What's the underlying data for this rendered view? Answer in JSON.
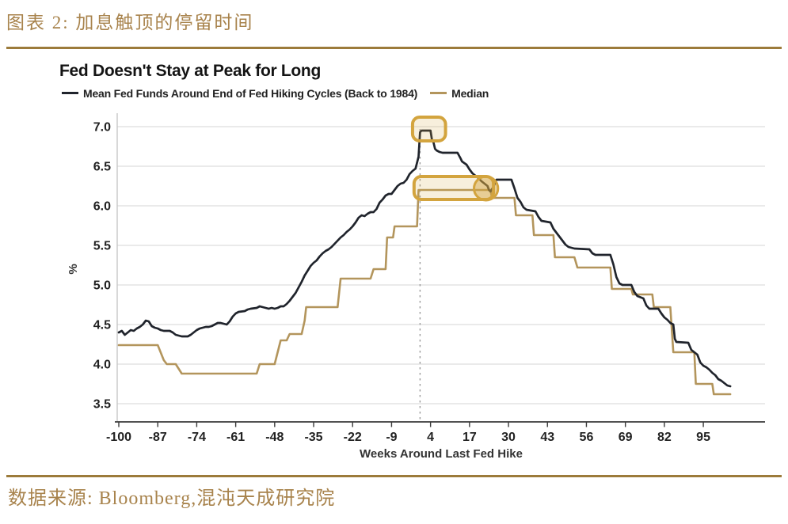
{
  "page": {
    "caption": "图表 2: 加息触顶的停留时间",
    "source": "数据来源: Bloomberg,混沌天成研究院"
  },
  "style": {
    "accent_rule": "#9c7b3b",
    "caption_color": "#a8834c",
    "title_color": "#141414",
    "legend_text_color": "#222222",
    "background": "#ffffff",
    "gridline_color": "#dedede",
    "axis_color": "#3a3a3a",
    "highlight_gold": "#d3a43e"
  },
  "chart_data": {
    "type": "line",
    "title": "Fed Doesn't Stay at Peak for Long",
    "xlabel": "Weeks Around Last Fed Hike",
    "ylabel": "%",
    "xlim": [
      -100,
      115
    ],
    "ylim": [
      3.3,
      7.15
    ],
    "x_ticks": [
      -100,
      -87,
      -74,
      -61,
      -48,
      -35,
      -22,
      -9,
      4,
      17,
      30,
      43,
      56,
      69,
      82,
      95
    ],
    "y_ticks": [
      3.5,
      4.0,
      4.5,
      5.0,
      5.5,
      6.0,
      6.5,
      7.0
    ],
    "grid": "horizontal",
    "legend_position": "top-left",
    "series": [
      {
        "name": "Mean Fed Funds Around End of Fed Hiking Cycles (Back to 1984)",
        "color": "#20242c",
        "values": [
          [
            -100,
            4.4
          ],
          [
            -99,
            4.42
          ],
          [
            -98,
            4.37
          ],
          [
            -97,
            4.4
          ],
          [
            -96,
            4.43
          ],
          [
            -95,
            4.42
          ],
          [
            -94,
            4.45
          ],
          [
            -93,
            4.47
          ],
          [
            -92,
            4.5
          ],
          [
            -91,
            4.55
          ],
          [
            -90,
            4.54
          ],
          [
            -89,
            4.48
          ],
          [
            -88,
            4.46
          ],
          [
            -87,
            4.45
          ],
          [
            -86,
            4.43
          ],
          [
            -85,
            4.42
          ],
          [
            -83,
            4.42
          ],
          [
            -82,
            4.4
          ],
          [
            -81,
            4.37
          ],
          [
            -79,
            4.35
          ],
          [
            -77,
            4.35
          ],
          [
            -76,
            4.37
          ],
          [
            -75,
            4.4
          ],
          [
            -74,
            4.43
          ],
          [
            -73,
            4.45
          ],
          [
            -72,
            4.46
          ],
          [
            -71,
            4.47
          ],
          [
            -70,
            4.47
          ],
          [
            -69,
            4.48
          ],
          [
            -68,
            4.5
          ],
          [
            -67,
            4.52
          ],
          [
            -66,
            4.52
          ],
          [
            -65,
            4.51
          ],
          [
            -64,
            4.5
          ],
          [
            -63,
            4.54
          ],
          [
            -62,
            4.6
          ],
          [
            -61,
            4.64
          ],
          [
            -60,
            4.66
          ],
          [
            -58,
            4.67
          ],
          [
            -57,
            4.69
          ],
          [
            -56,
            4.7
          ],
          [
            -54,
            4.71
          ],
          [
            -53,
            4.73
          ],
          [
            -52,
            4.72
          ],
          [
            -51,
            4.71
          ],
          [
            -50,
            4.7
          ],
          [
            -49,
            4.71
          ],
          [
            -48,
            4.7
          ],
          [
            -47,
            4.71
          ],
          [
            -46,
            4.73
          ],
          [
            -45,
            4.73
          ],
          [
            -44,
            4.76
          ],
          [
            -43,
            4.8
          ],
          [
            -42,
            4.85
          ],
          [
            -41,
            4.9
          ],
          [
            -40,
            4.97
          ],
          [
            -39,
            5.04
          ],
          [
            -38,
            5.12
          ],
          [
            -37,
            5.18
          ],
          [
            -36,
            5.24
          ],
          [
            -35,
            5.28
          ],
          [
            -34,
            5.31
          ],
          [
            -33,
            5.36
          ],
          [
            -32,
            5.4
          ],
          [
            -31,
            5.43
          ],
          [
            -30,
            5.45
          ],
          [
            -29,
            5.48
          ],
          [
            -28,
            5.52
          ],
          [
            -27,
            5.56
          ],
          [
            -26,
            5.6
          ],
          [
            -25,
            5.63
          ],
          [
            -24,
            5.67
          ],
          [
            -23,
            5.7
          ],
          [
            -22,
            5.74
          ],
          [
            -21,
            5.79
          ],
          [
            -20,
            5.85
          ],
          [
            -19,
            5.88
          ],
          [
            -18,
            5.87
          ],
          [
            -17,
            5.9
          ],
          [
            -16,
            5.92
          ],
          [
            -15,
            5.92
          ],
          [
            -14,
            5.96
          ],
          [
            -13,
            6.04
          ],
          [
            -12,
            6.08
          ],
          [
            -11,
            6.13
          ],
          [
            -10,
            6.15
          ],
          [
            -9,
            6.15
          ],
          [
            -8,
            6.2
          ],
          [
            -7,
            6.25
          ],
          [
            -6,
            6.28
          ],
          [
            -5,
            6.29
          ],
          [
            -4,
            6.33
          ],
          [
            -3,
            6.4
          ],
          [
            -2,
            6.44
          ],
          [
            -1,
            6.47
          ],
          [
            0,
            6.62
          ],
          [
            0.5,
            6.93
          ],
          [
            1,
            6.95
          ],
          [
            4,
            6.95
          ],
          [
            4.5,
            6.83
          ],
          [
            5,
            6.8
          ],
          [
            5.5,
            6.72
          ],
          [
            6,
            6.7
          ],
          [
            7,
            6.68
          ],
          [
            8,
            6.67
          ],
          [
            13,
            6.67
          ],
          [
            14,
            6.6
          ],
          [
            14.5,
            6.56
          ],
          [
            16,
            6.52
          ],
          [
            17,
            6.46
          ],
          [
            18,
            6.41
          ],
          [
            19,
            6.38
          ],
          [
            20,
            6.35
          ],
          [
            21,
            6.31
          ],
          [
            22,
            6.28
          ],
          [
            23,
            6.25
          ],
          [
            23.5,
            6.2
          ],
          [
            24,
            6.18
          ],
          [
            25,
            6.24
          ],
          [
            26,
            6.33
          ],
          [
            31,
            6.33
          ],
          [
            32,
            6.22
          ],
          [
            33,
            6.1
          ],
          [
            34,
            6.05
          ],
          [
            35,
            5.98
          ],
          [
            36,
            5.95
          ],
          [
            39,
            5.93
          ],
          [
            40,
            5.86
          ],
          [
            41,
            5.81
          ],
          [
            44,
            5.79
          ],
          [
            45,
            5.71
          ],
          [
            46,
            5.66
          ],
          [
            47,
            5.61
          ],
          [
            48,
            5.56
          ],
          [
            49,
            5.51
          ],
          [
            50,
            5.48
          ],
          [
            52,
            5.46
          ],
          [
            57,
            5.45
          ],
          [
            58,
            5.4
          ],
          [
            59,
            5.38
          ],
          [
            64,
            5.38
          ],
          [
            65,
            5.26
          ],
          [
            66,
            5.1
          ],
          [
            67,
            5.02
          ],
          [
            68,
            5.0
          ],
          [
            71,
            5.0
          ],
          [
            72,
            4.91
          ],
          [
            73,
            4.86
          ],
          [
            75,
            4.83
          ],
          [
            76,
            4.74
          ],
          [
            77,
            4.7
          ],
          [
            80,
            4.7
          ],
          [
            81,
            4.64
          ],
          [
            82,
            4.59
          ],
          [
            83,
            4.56
          ],
          [
            84,
            4.52
          ],
          [
            85,
            4.5
          ],
          [
            85.5,
            4.32
          ],
          [
            86,
            4.28
          ],
          [
            90,
            4.27
          ],
          [
            91,
            4.18
          ],
          [
            92,
            4.15
          ],
          [
            93,
            4.12
          ],
          [
            94,
            4.02
          ],
          [
            95,
            3.98
          ],
          [
            96,
            3.96
          ],
          [
            97,
            3.93
          ],
          [
            98,
            3.89
          ],
          [
            99,
            3.86
          ],
          [
            100,
            3.81
          ],
          [
            101,
            3.79
          ],
          [
            102,
            3.76
          ],
          [
            103,
            3.73
          ],
          [
            104,
            3.72
          ]
        ]
      },
      {
        "name": "Median",
        "color": "#b3955c",
        "values": [
          [
            -100,
            4.24
          ],
          [
            -87,
            4.24
          ],
          [
            -85,
            4.05
          ],
          [
            -84,
            4.0
          ],
          [
            -81,
            4.0
          ],
          [
            -79,
            3.88
          ],
          [
            -54,
            3.88
          ],
          [
            -53,
            4.0
          ],
          [
            -48,
            4.0
          ],
          [
            -47,
            4.15
          ],
          [
            -46,
            4.3
          ],
          [
            -44,
            4.3
          ],
          [
            -43,
            4.38
          ],
          [
            -39,
            4.38
          ],
          [
            -38,
            4.55
          ],
          [
            -37.5,
            4.72
          ],
          [
            -27,
            4.72
          ],
          [
            -26,
            5.08
          ],
          [
            -16,
            5.08
          ],
          [
            -15,
            5.2
          ],
          [
            -11,
            5.2
          ],
          [
            -10.5,
            5.6
          ],
          [
            -8.5,
            5.6
          ],
          [
            -8,
            5.74
          ],
          [
            -0.5,
            5.74
          ],
          [
            0,
            6.2
          ],
          [
            24,
            6.2
          ],
          [
            24.5,
            6.1
          ],
          [
            32,
            6.1
          ],
          [
            32.5,
            5.88
          ],
          [
            38,
            5.88
          ],
          [
            38.5,
            5.63
          ],
          [
            45,
            5.63
          ],
          [
            45.5,
            5.35
          ],
          [
            52,
            5.35
          ],
          [
            53,
            5.22
          ],
          [
            64,
            5.22
          ],
          [
            64.5,
            4.95
          ],
          [
            71,
            4.95
          ],
          [
            71.5,
            4.88
          ],
          [
            78,
            4.88
          ],
          [
            78.5,
            4.72
          ],
          [
            84,
            4.72
          ],
          [
            85,
            4.15
          ],
          [
            92,
            4.15
          ],
          [
            92.5,
            3.75
          ],
          [
            98,
            3.75
          ],
          [
            98.5,
            3.62
          ],
          [
            104,
            3.62
          ]
        ]
      }
    ],
    "annotations": {
      "highlight_color": "#d3a43e",
      "vline_week": 0.5,
      "boxes": [
        {
          "note": "mean-peak-highlight",
          "x0": -2,
          "x1": 9,
          "y0": 6.82,
          "y1": 7.12
        },
        {
          "note": "median-peak-highlight",
          "x0": -1.5,
          "x1": 25,
          "y0": 6.08,
          "y1": 6.37
        }
      ],
      "ellipse": {
        "note": "mean-median-crossover",
        "cx": 22.5,
        "cy": 6.22,
        "rx": 4,
        "ry": 0.15
      }
    }
  }
}
